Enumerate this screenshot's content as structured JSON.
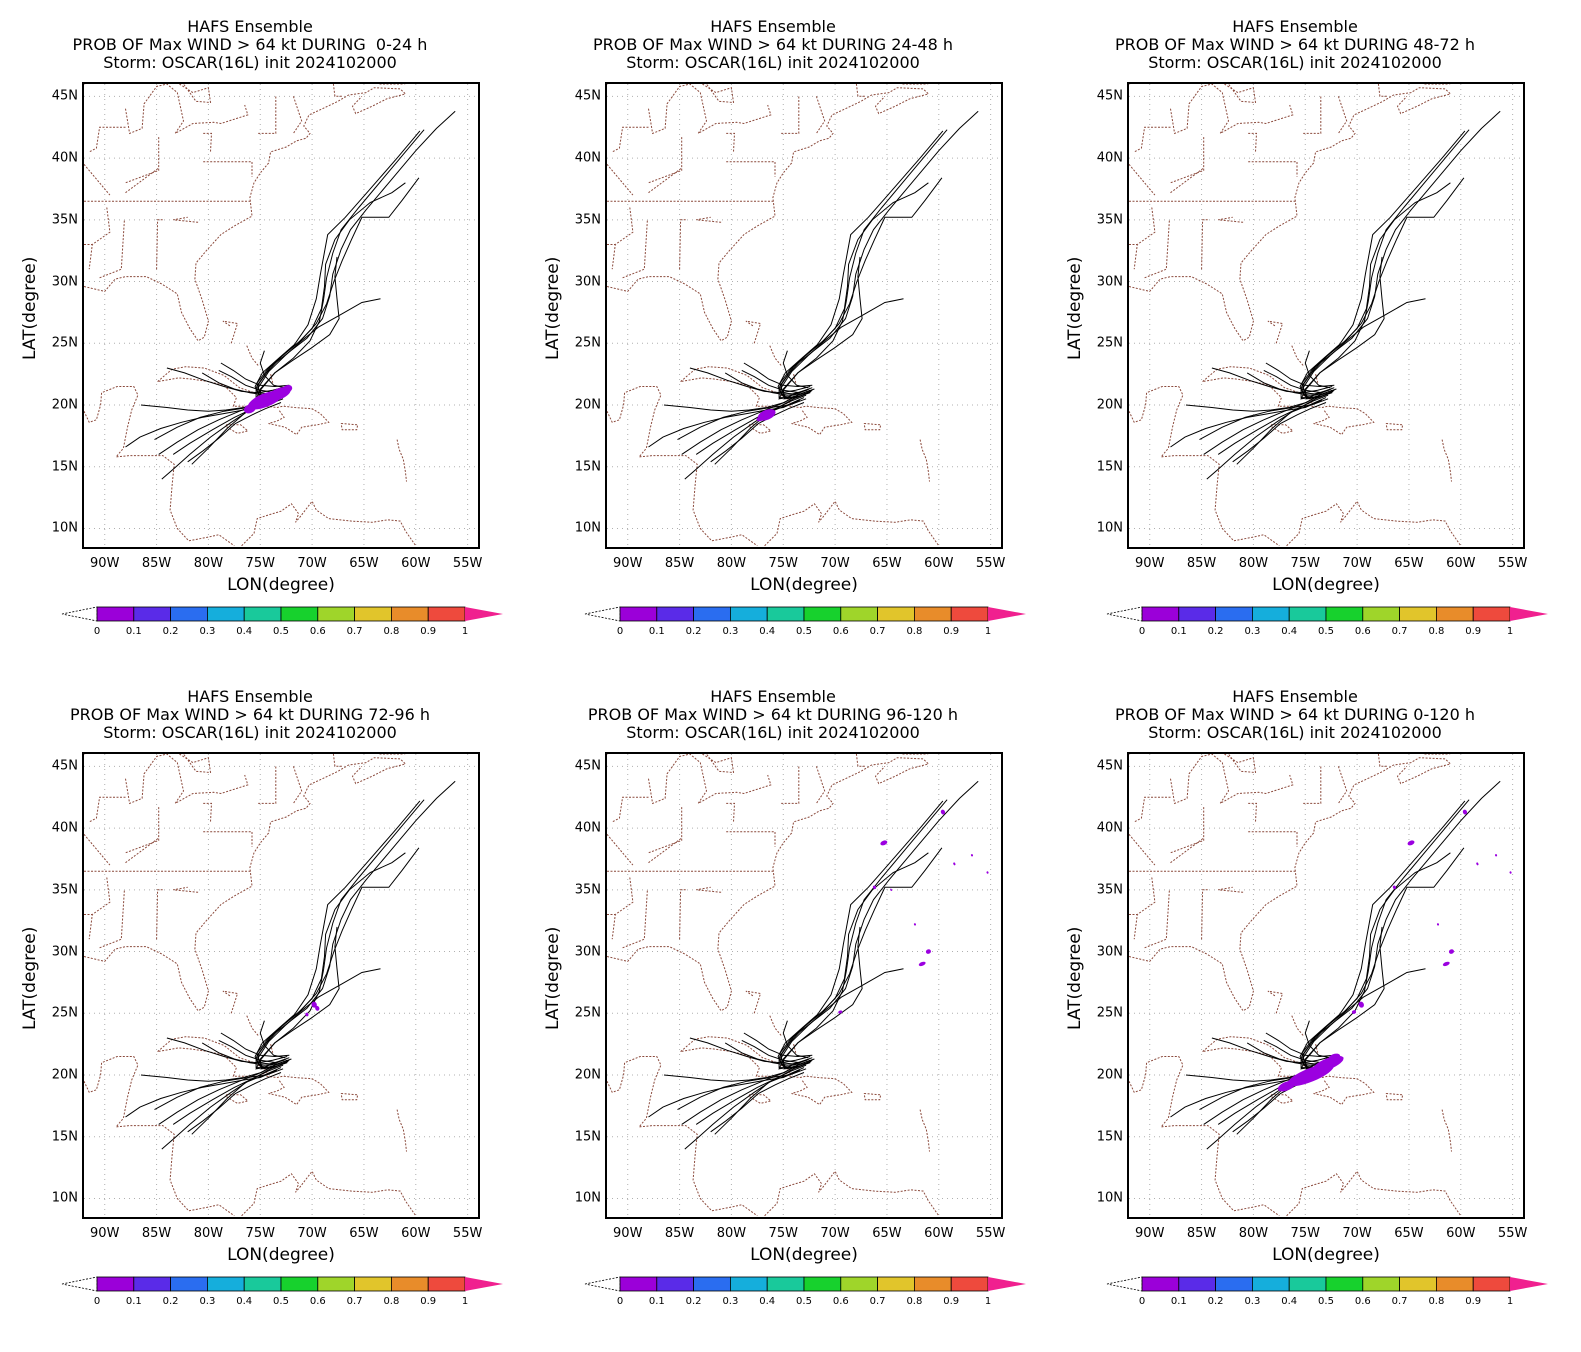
{
  "panels": [
    {
      "title1": "HAFS Ensemble",
      "title2": "PROB OF Max WIND > 64 kt DURING  0-24 h",
      "title3": "Storm: OSCAR(16L) init 2024102000",
      "prob_blobs": "p0_24"
    },
    {
      "title1": "HAFS Ensemble",
      "title2": "PROB OF Max WIND > 64 kt DURING 24-48 h",
      "title3": "Storm: OSCAR(16L) init 2024102000",
      "prob_blobs": "p24_48"
    },
    {
      "title1": "HAFS Ensemble",
      "title2": "PROB OF Max WIND > 64 kt DURING 48-72 h",
      "title3": "Storm: OSCAR(16L) init 2024102000",
      "prob_blobs": "none"
    },
    {
      "title1": "HAFS Ensemble",
      "title2": "PROB OF Max WIND > 64 kt DURING 72-96 h",
      "title3": "Storm: OSCAR(16L) init 2024102000",
      "prob_blobs": "p72_96"
    },
    {
      "title1": "HAFS Ensemble",
      "title2": "PROB OF Max WIND > 64 kt DURING 96-120 h",
      "title3": "Storm: OSCAR(16L) init 2024102000",
      "prob_blobs": "p96_120"
    },
    {
      "title1": "HAFS Ensemble",
      "title2": "PROB OF Max WIND > 64 kt DURING 0-120 h",
      "title3": "Storm: OSCAR(16L) init 2024102000",
      "prob_blobs": "p0_120"
    }
  ],
  "axes": {
    "xlabel": "LON(degree)",
    "ylabel": "LAT(degree)",
    "lon_range": [
      -92,
      -54
    ],
    "lat_range": [
      8.5,
      46
    ],
    "lon_ticks": [
      "90W",
      "85W",
      "80W",
      "75W",
      "70W",
      "65W",
      "60W",
      "55W"
    ],
    "lon_tick_values": [
      -90,
      -85,
      -80,
      -75,
      -70,
      -65,
      -60,
      -55
    ],
    "lat_ticks": [
      "10N",
      "15N",
      "20N",
      "25N",
      "30N",
      "35N",
      "40N",
      "45N"
    ],
    "lat_tick_values": [
      10,
      15,
      20,
      25,
      30,
      35,
      40,
      45
    ]
  },
  "colorbar": {
    "labels": [
      "0",
      "0.1",
      "0.2",
      "0.3",
      "0.4",
      "0.5",
      "0.6",
      "0.7",
      "0.8",
      "0.9",
      "1"
    ],
    "colors": [
      "#9b00d9",
      "#5a2be8",
      "#2a6df0",
      "#15aedc",
      "#19c99b",
      "#17d12d",
      "#9fd52a",
      "#e1c52b",
      "#e88c2a",
      "#ee4a3d"
    ],
    "over_color": "#f0208f",
    "under_color": "#ffffff"
  },
  "colors": {
    "track": "#000000",
    "coast": "#8b4a3c",
    "grid": "#b0b0b0",
    "prob": "#9b00e0"
  }
}
